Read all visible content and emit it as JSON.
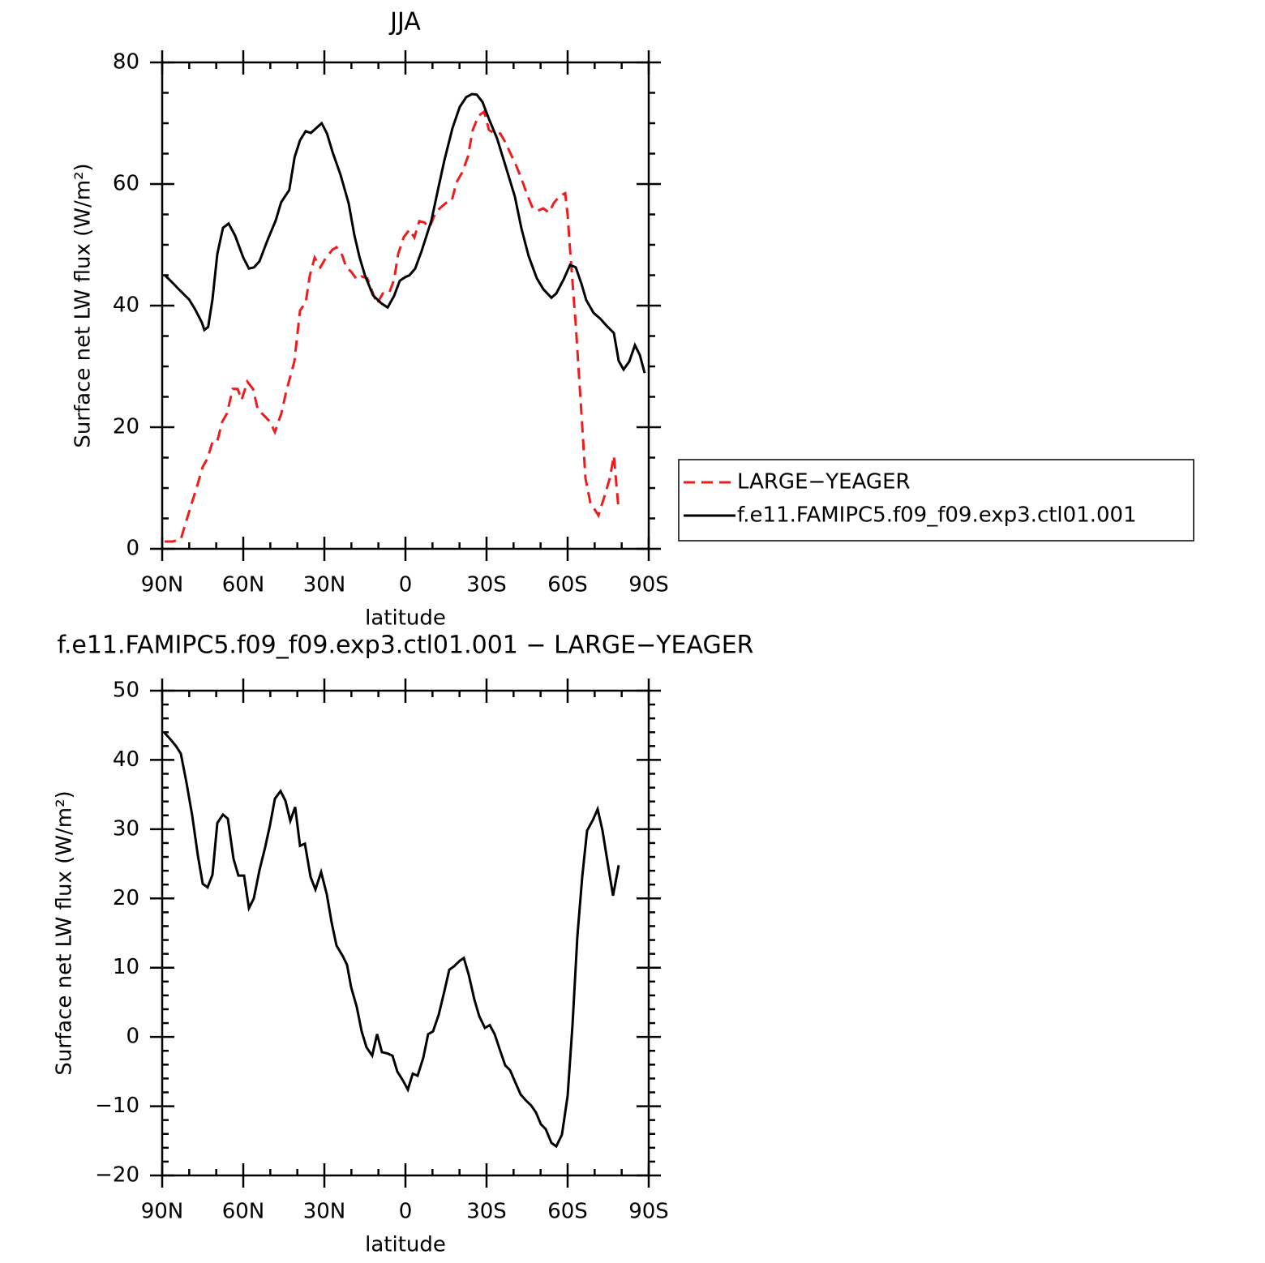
{
  "chart_data": [
    {
      "type": "line",
      "title": "JJA",
      "xlabel": "latitude",
      "ylabel": "Surface net LW flux (W/m²)",
      "xlim": [
        90,
        -90
      ],
      "ylim": [
        0,
        80
      ],
      "xticks": [
        {
          "value": 90,
          "label": "90N"
        },
        {
          "value": 60,
          "label": "60N"
        },
        {
          "value": 30,
          "label": "30N"
        },
        0,
        {
          "value": -30,
          "label": "30S"
        },
        {
          "value": -60,
          "label": "60S"
        },
        {
          "value": -90,
          "label": "90S"
        }
      ],
      "yticks": [
        0,
        20,
        40,
        60,
        80
      ],
      "minor_xticks": [
        80,
        70,
        50,
        40,
        20,
        10,
        -10,
        -20,
        -40,
        -50,
        -70,
        -80
      ],
      "minor_yticks": [
        5,
        10,
        15,
        25,
        30,
        35,
        45,
        50,
        55,
        65,
        70,
        75
      ],
      "legend": "right",
      "series": [
        {
          "name": "LARGE−YEAGER",
          "color": "#ee1c1c",
          "dashed": true,
          "x": [
            89.1,
            86.1,
            83.1,
            80.1,
            77.1,
            75,
            73.2,
            71.4,
            69.6,
            67.8,
            66,
            63.9,
            62.1,
            60.6,
            58.5,
            56.4,
            54.6,
            52.5,
            50.1,
            48.3,
            45.9,
            44.1,
            41.1,
            39,
            36.9,
            35.4,
            33.6,
            31.5,
            29.4,
            27,
            25.5,
            23.4,
            21.9,
            20.1,
            18,
            16.2,
            14.1,
            12,
            10.5,
            8.4,
            6,
            4.2,
            2.7,
            0.6,
            -1.5,
            -3.3,
            -5.1,
            -6.9,
            -9,
            -11.1,
            -12.9,
            -15,
            -17.1,
            -18.9,
            -21,
            -23.1,
            -24.9,
            -27,
            -29.1,
            -30.9,
            -33,
            -35.1,
            -36.9,
            -39,
            -41.1,
            -42.9,
            -45,
            -47.1,
            -48.9,
            -51,
            -53.1,
            -54.9,
            -57,
            -59.1,
            -60,
            -60.9,
            -63,
            -65.1,
            -66.6,
            -68.4,
            -71.4,
            -73.8,
            -75.6,
            -77.1,
            -78.9
          ],
          "values": [
            1.2,
            1.2,
            1.6,
            6,
            10.3,
            13.5,
            14.9,
            17.6,
            17.7,
            20.9,
            22.3,
            26.3,
            26.3,
            24.5,
            27.5,
            26.3,
            22.9,
            22,
            20.9,
            19.2,
            22.3,
            25.9,
            30.8,
            39.2,
            40.5,
            44.9,
            47.9,
            46.3,
            47.9,
            49.2,
            49.6,
            48.3,
            46.3,
            45.6,
            44.3,
            44.8,
            44.5,
            42,
            40.3,
            42,
            42.1,
            44.3,
            48.5,
            51.3,
            52.5,
            51.2,
            53.9,
            53.7,
            52.9,
            55.3,
            56.1,
            56.9,
            57.2,
            60.3,
            61.9,
            64.5,
            68.9,
            71.2,
            71.9,
            68.9,
            68.3,
            68.3,
            66.9,
            64.9,
            62.9,
            60.9,
            58.3,
            56,
            55.6,
            56,
            55.3,
            56.9,
            58,
            58.5,
            54.9,
            49.2,
            36.9,
            22.3,
            11.6,
            7.6,
            5.5,
            8.9,
            11.6,
            15.3,
            6.3
          ]
        },
        {
          "name": "f.e11.FAMIPC5.f09_f09.exp3.ctl01.001",
          "color": "#000000",
          "dashed": false,
          "x": [
            89,
            86.7,
            83.4,
            80,
            77.7,
            75.3,
            74.4,
            73,
            71.4,
            69.6,
            67.5,
            65.4,
            63,
            60,
            57.9,
            56,
            54,
            51,
            48,
            46,
            43,
            41,
            39,
            36.9,
            35,
            33,
            31,
            29,
            27,
            24,
            21,
            18.9,
            17,
            15,
            12,
            9,
            6.6,
            4.2,
            2.1,
            0,
            -1.5,
            -3.6,
            -6,
            -9.6,
            -12,
            -14.4,
            -17.4,
            -20.1,
            -22.5,
            -24.6,
            -26.4,
            -28.5,
            -30.9,
            -33.9,
            -37.5,
            -40.5,
            -42.9,
            -45.6,
            -48.6,
            -51,
            -54,
            -55.8,
            -58.5,
            -60.9,
            -63,
            -65.1,
            -66.9,
            -69.6,
            -72,
            -74.4,
            -77.1,
            -78.9,
            -80.7,
            -82.8,
            -84.9,
            -86.7,
            -88.5
          ],
          "values": [
            45,
            44,
            42.5,
            41,
            39.3,
            37.2,
            36,
            36.5,
            41,
            48.5,
            52.8,
            53.5,
            51.5,
            47.9,
            46.1,
            46.3,
            47.3,
            50.8,
            54,
            57,
            59,
            64.4,
            67.2,
            68.7,
            68.4,
            69.2,
            70,
            68.3,
            65.3,
            61.5,
            56.8,
            51.6,
            48,
            45,
            41.7,
            40.4,
            39.7,
            41.6,
            44.1,
            44.7,
            45,
            46.1,
            49,
            54,
            59,
            63.9,
            69.2,
            72.7,
            74.3,
            74.8,
            74.7,
            73.5,
            70.7,
            67.5,
            62.3,
            57.9,
            52.7,
            48.1,
            44.5,
            42.7,
            41.3,
            42,
            44.3,
            46.7,
            46.3,
            43.6,
            40.9,
            38.8,
            37.9,
            36.7,
            35.5,
            30.9,
            29.5,
            30.8,
            33.5,
            31.9,
            28.9
          ]
        }
      ]
    },
    {
      "type": "line",
      "title": "f.e11.FAMIPC5.f09_f09.exp3.ctl01.001 − LARGE−YEAGER",
      "xlabel": "latitude",
      "ylabel": "Surface net LW flux (W/m²)",
      "xlim": [
        90,
        -90
      ],
      "ylim": [
        -20,
        50
      ],
      "xticks": [
        {
          "value": 90,
          "label": "90N"
        },
        {
          "value": 60,
          "label": "60N"
        },
        {
          "value": 30,
          "label": "30N"
        },
        0,
        {
          "value": -30,
          "label": "30S"
        },
        {
          "value": -60,
          "label": "60S"
        },
        {
          "value": -90,
          "label": "90S"
        }
      ],
      "yticks": [
        {
          "value": -20,
          "label": "−20"
        },
        {
          "value": -10,
          "label": "−10"
        },
        0,
        10,
        20,
        30,
        40,
        50
      ],
      "minor_xticks": [
        80,
        70,
        50,
        40,
        20,
        10,
        -10,
        -20,
        -40,
        -50,
        -70,
        -80
      ],
      "minor_yticks": [
        -18,
        -16,
        -14,
        -12,
        -8,
        -6,
        -4,
        -2,
        2,
        4,
        6,
        8,
        12,
        14,
        16,
        18,
        22,
        24,
        26,
        28,
        32,
        34,
        36,
        38,
        42,
        44,
        46,
        48
      ],
      "series": [
        {
          "color": "#000000",
          "dashed": false,
          "x": [
            89.1,
            87,
            84.9,
            83.1,
            81,
            78.9,
            76.8,
            75,
            73.2,
            71.4,
            69.6,
            67.5,
            65.7,
            63.6,
            61.8,
            59.7,
            57.9,
            56.1,
            54,
            51.9,
            50.1,
            48.3,
            46.2,
            44.4,
            42.6,
            40.8,
            39,
            37.2,
            35.1,
            33.3,
            31.2,
            29.1,
            27.3,
            25.5,
            23.1,
            21.6,
            20.1,
            18,
            16.2,
            14.4,
            12.3,
            10.5,
            8.7,
            6.6,
            4.8,
            3,
            0.9,
            -0.9,
            -2.7,
            -4.5,
            -6.6,
            -8.4,
            -10.2,
            -12.3,
            -14.4,
            -16.2,
            -18,
            -20.1,
            -21.6,
            -23.4,
            -25.5,
            -27.3,
            -29.4,
            -31.2,
            -33,
            -34.8,
            -36.9,
            -38.7,
            -40.8,
            -42.6,
            -44.4,
            -46.5,
            -48.3,
            -50.1,
            -51.9,
            -54,
            -55.8,
            -57.9,
            -60,
            -61.8,
            -63.6,
            -65.4,
            -67.2,
            -69.3,
            -71.1,
            -72.9,
            -75,
            -76.8,
            -78.9
          ],
          "values": [
            43.9,
            43,
            42,
            40.9,
            36.7,
            32,
            26.2,
            22.1,
            21.6,
            23.4,
            30.9,
            32.1,
            31.5,
            25.7,
            23.3,
            23.3,
            18.6,
            20,
            24.1,
            27.4,
            30.6,
            34.4,
            35.5,
            34.1,
            31.2,
            33.2,
            27.6,
            27.9,
            23.1,
            21.3,
            23.8,
            20.6,
            16.5,
            13.2,
            11.6,
            10.4,
            7.2,
            4.3,
            0.8,
            -1.5,
            -2.7,
            0.4,
            -2.2,
            -2.4,
            -2.7,
            -5,
            -6.3,
            -7.6,
            -5.3,
            -5.6,
            -3,
            0.4,
            0.8,
            3.2,
            6.6,
            9.7,
            10.2,
            11,
            11.4,
            9,
            5.4,
            3,
            1.3,
            1.7,
            0.4,
            -1.7,
            -4.1,
            -4.8,
            -6.7,
            -8.3,
            -9.1,
            -9.9,
            -10.9,
            -12.6,
            -13.3,
            -15.3,
            -15.8,
            -14.1,
            -8.5,
            1.7,
            14.5,
            23.1,
            29.8,
            31.3,
            32.9,
            29.8,
            24.7,
            20.4,
            24.8
          ]
        }
      ]
    }
  ]
}
